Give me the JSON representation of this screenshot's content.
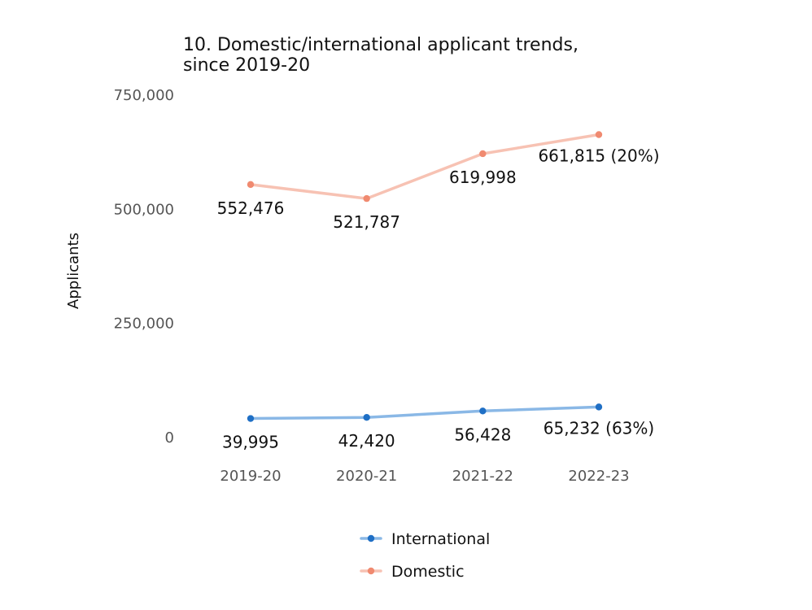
{
  "chart_data": {
    "type": "line",
    "title_lines": [
      "10. Domestic/international applicant trends,",
      "since 2019-20"
    ],
    "ylabel": "Applicants",
    "xlabel": "",
    "categories": [
      "2019-20",
      "2020-21",
      "2021-22",
      "2022-23"
    ],
    "ylim": [
      0,
      750000
    ],
    "yticks": [
      0,
      250000,
      500000,
      750000
    ],
    "ytick_labels": [
      "0",
      "250,000",
      "500,000",
      "750,000"
    ],
    "grid": false,
    "legend_position": "bottom",
    "series": [
      {
        "name": "International",
        "color": "#1f6fc5",
        "line_color": "#8ab8e6",
        "values": [
          39995,
          42420,
          56428,
          65232
        ],
        "labels": [
          "39,995",
          "42,420",
          "56,428",
          "65,232 (63%)"
        ]
      },
      {
        "name": "Domestic",
        "color": "#f08a70",
        "line_color": "#f7c2b3",
        "values": [
          552476,
          521787,
          619998,
          661815
        ],
        "labels": [
          "552,476",
          "521,787",
          "619,998",
          "661,815 (20%)"
        ]
      }
    ]
  }
}
